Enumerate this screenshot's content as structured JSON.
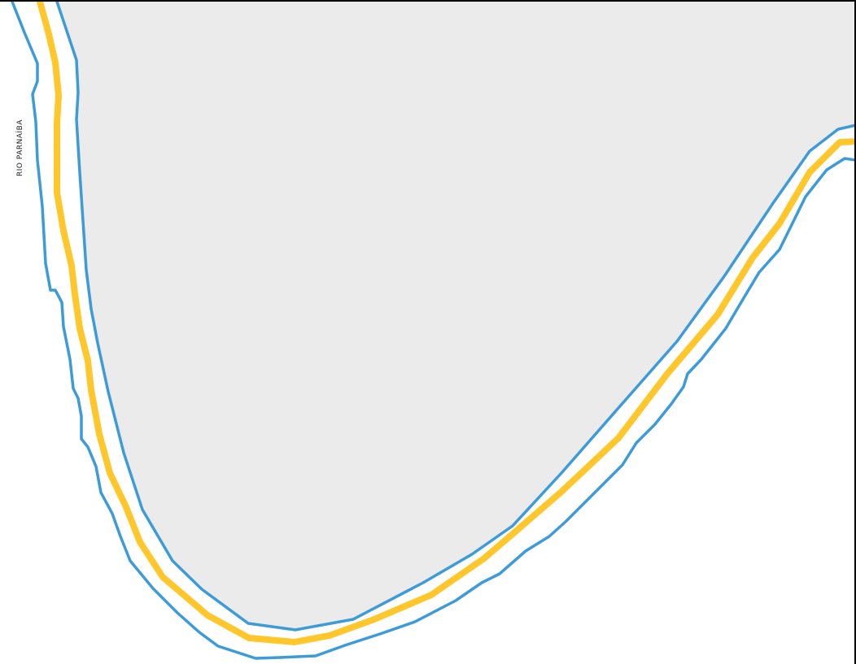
{
  "map": {
    "labels": {
      "river": "RIO PARNAÍBA"
    },
    "colors": {
      "background": "#ffffff",
      "land_fill": "#ebebeb",
      "river_line": "#3d9bd8",
      "boundary_line": "#ffc72c",
      "frame": "#000000",
      "label_text": "#222222"
    }
  }
}
